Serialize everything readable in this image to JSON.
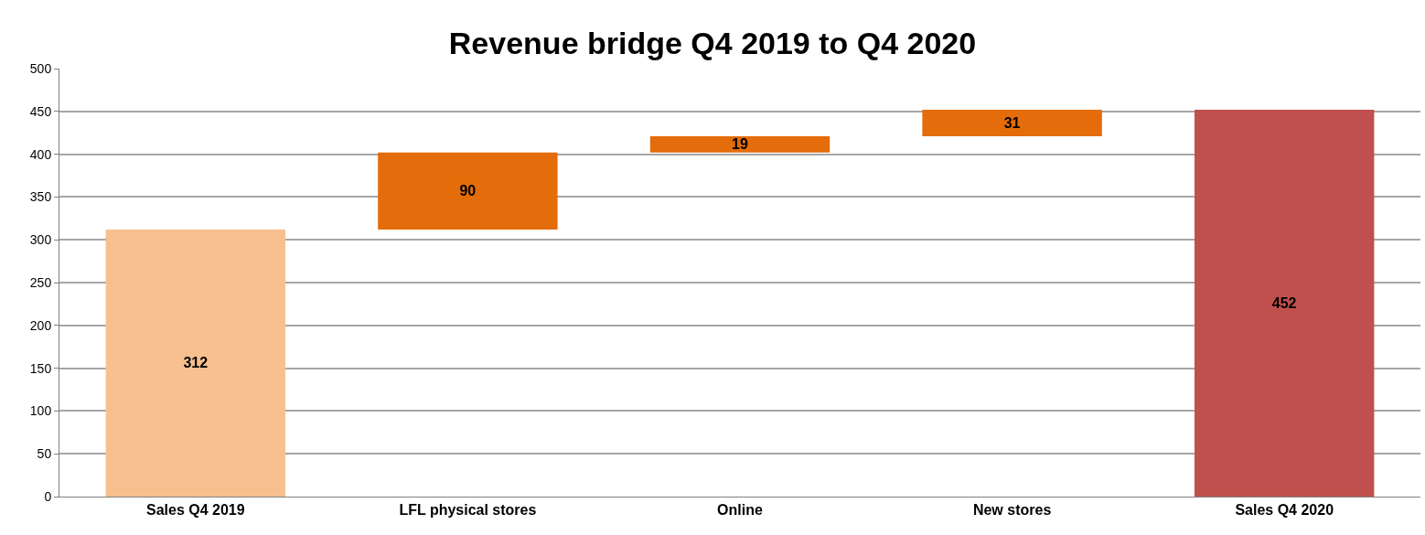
{
  "chart_data": {
    "type": "bar",
    "title": "Revenue bridge Q4 2019 to Q4 2020",
    "categories": [
      "Sales Q4 2019",
      "LFL physical stores",
      "Online",
      "New stores",
      "Sales Q4 2020"
    ],
    "values": [
      312,
      90,
      19,
      31,
      452
    ],
    "base": [
      0,
      312,
      402,
      421,
      0
    ],
    "colors": [
      "#f8c08f",
      "#e46c0a",
      "#e46c0a",
      "#e46c0a",
      "#c0504d"
    ],
    "data_labels": true,
    "ylim": [
      0,
      500
    ],
    "yticks": [
      0,
      50,
      100,
      150,
      200,
      250,
      300,
      350,
      400,
      450,
      500
    ],
    "grid": "y"
  }
}
